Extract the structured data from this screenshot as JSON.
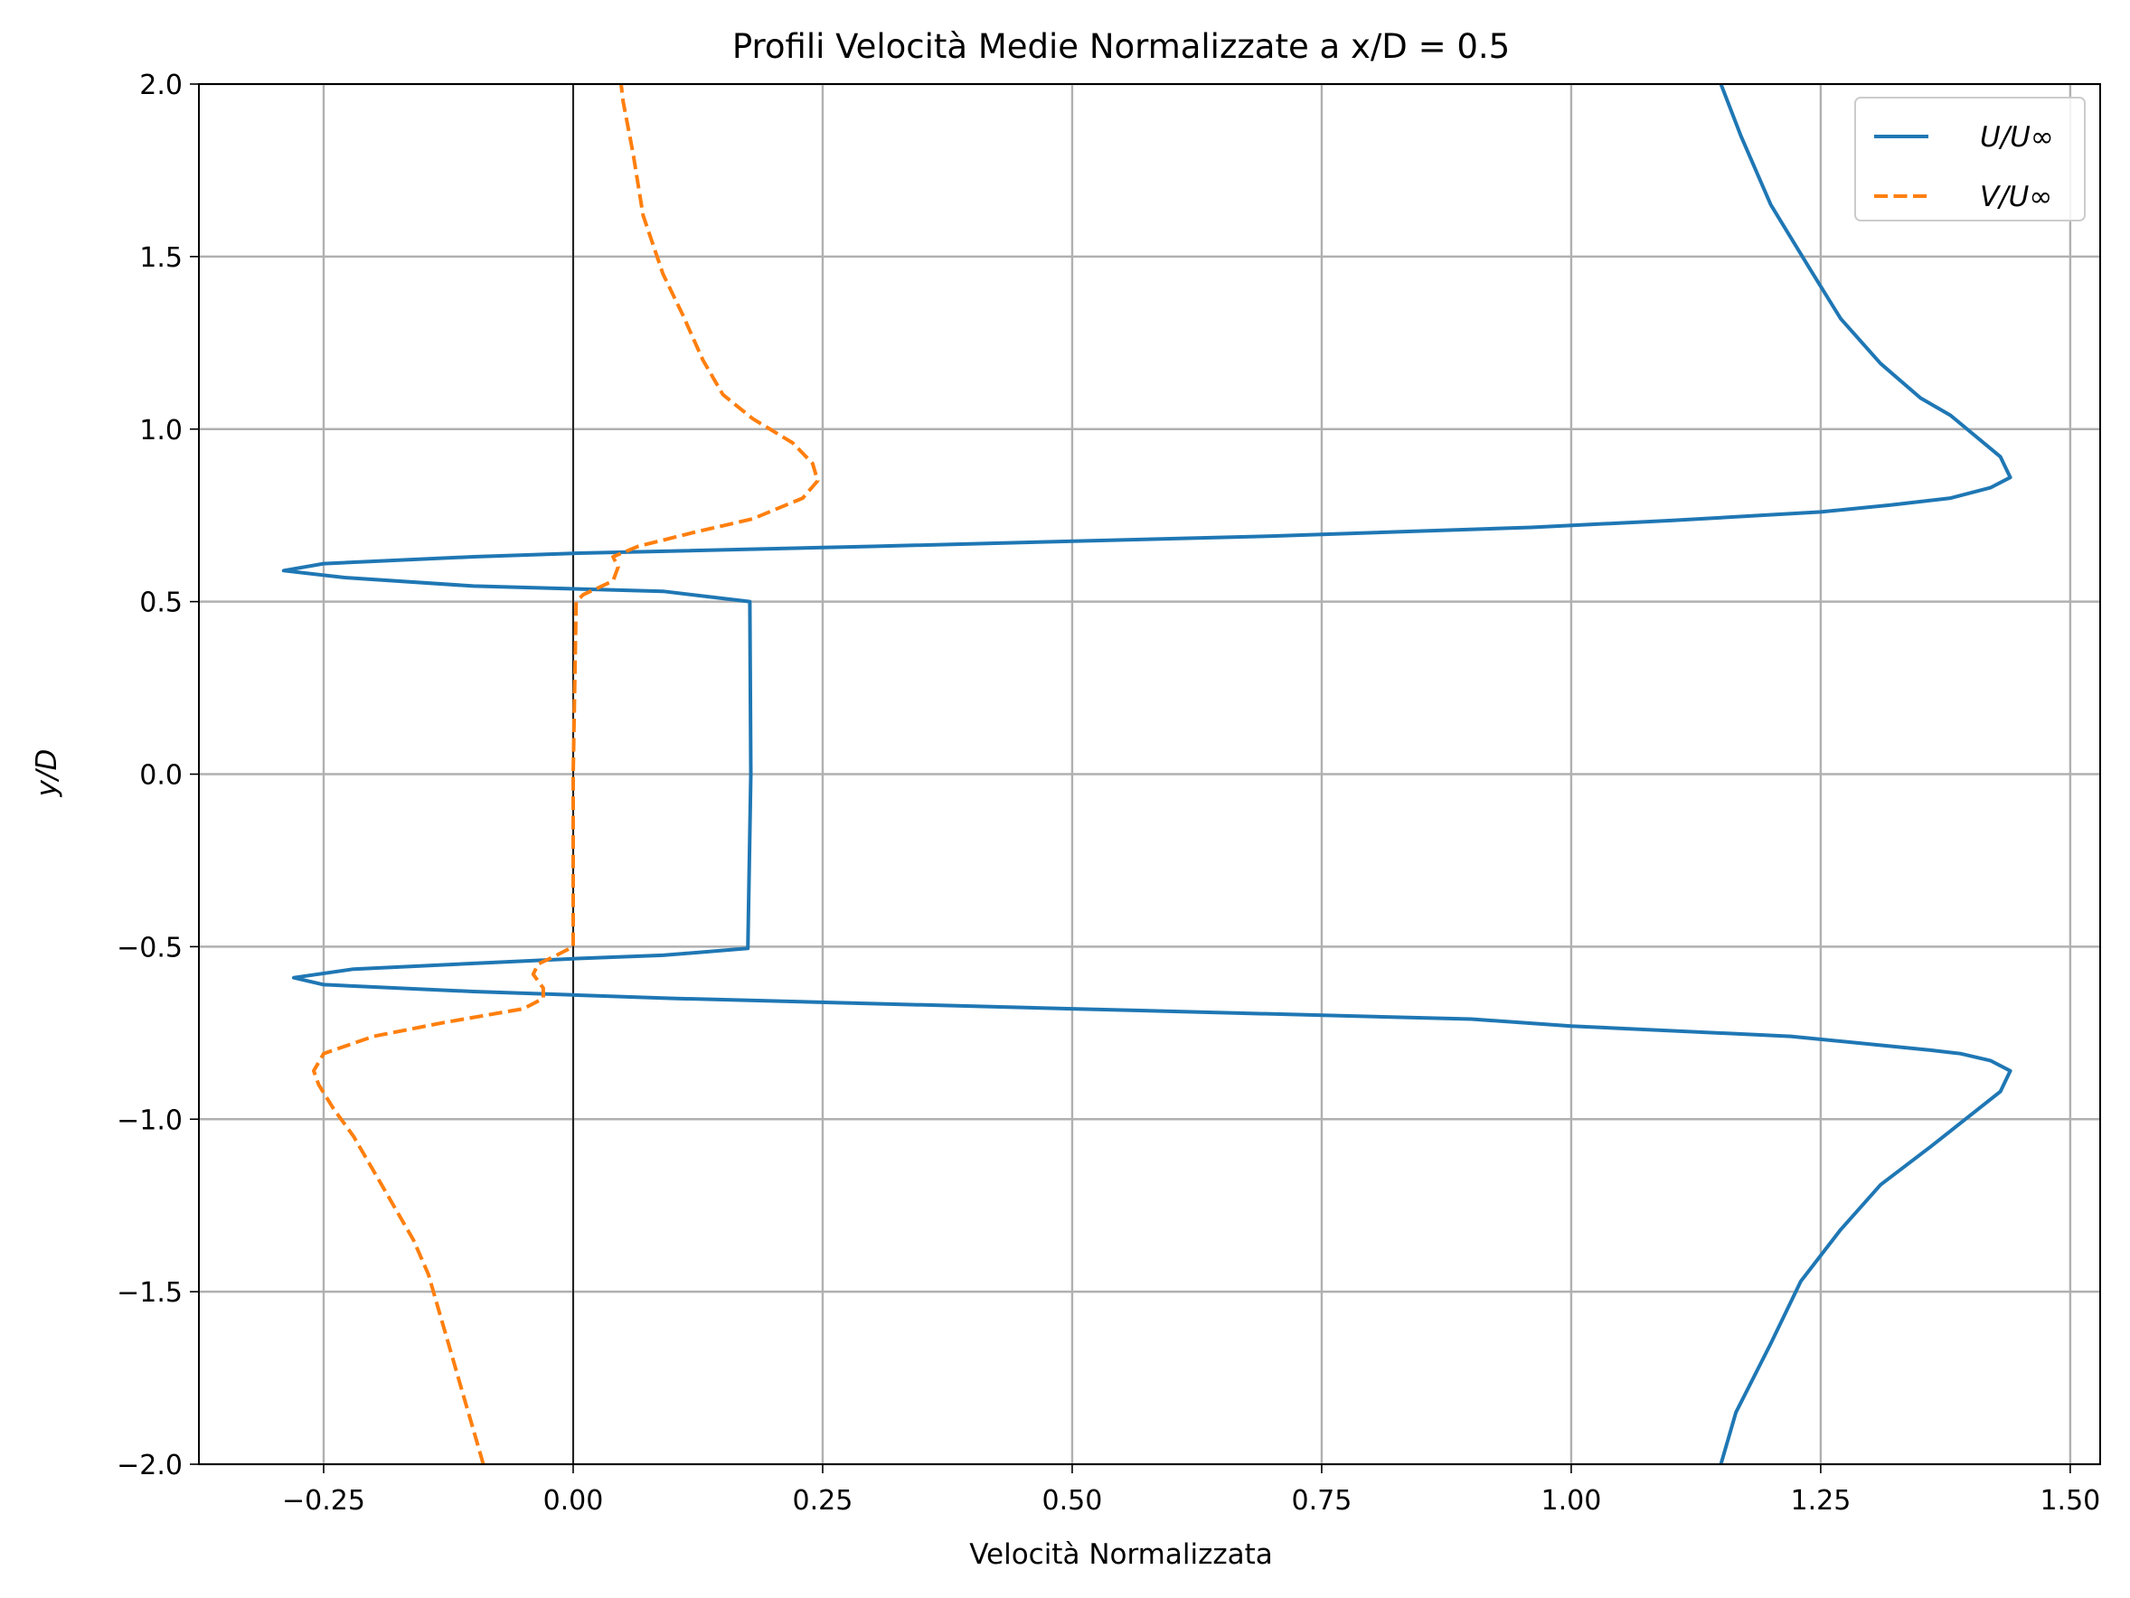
{
  "chart_data": {
    "type": "line",
    "title": "Profili Velocità Medie Normalizzate a x/D = 0.5",
    "xlabel": "Velocità Normalizzata",
    "ylabel": "y/D",
    "xlim": [
      -0.375,
      1.53
    ],
    "ylim": [
      -2.0,
      2.0
    ],
    "xticks": [
      -0.25,
      0.0,
      0.25,
      0.5,
      0.75,
      1.0,
      1.25,
      1.5
    ],
    "xtick_labels": [
      "−0.25",
      "0.00",
      "0.25",
      "0.50",
      "0.75",
      "1.00",
      "1.25",
      "1.50"
    ],
    "yticks": [
      -2.0,
      -1.5,
      -1.0,
      -0.5,
      0.0,
      0.5,
      1.0,
      1.5,
      2.0
    ],
    "ytick_labels": [
      "−2.0",
      "−1.5",
      "−1.0",
      "−0.5",
      "0.0",
      "0.5",
      "1.0",
      "1.5",
      "2.0"
    ],
    "grid": true,
    "reference_line_x": 0.0,
    "legend_position": "top-right",
    "series": [
      {
        "name": "U/U∞",
        "color": "#1f77b4",
        "style": "solid",
        "points": [
          [
            1.15,
            -2.0
          ],
          [
            1.165,
            -1.85
          ],
          [
            1.2,
            -1.65
          ],
          [
            1.23,
            -1.47
          ],
          [
            1.27,
            -1.32
          ],
          [
            1.31,
            -1.19
          ],
          [
            1.36,
            -1.08
          ],
          [
            1.43,
            -0.92
          ],
          [
            1.44,
            -0.86
          ],
          [
            1.42,
            -0.83
          ],
          [
            1.39,
            -0.81
          ],
          [
            1.36,
            -0.8
          ],
          [
            1.22,
            -0.76
          ],
          [
            1.0,
            -0.73
          ],
          [
            0.9,
            -0.71
          ],
          [
            0.5,
            -0.68
          ],
          [
            0.1,
            -0.65
          ],
          [
            0.0,
            -0.64
          ],
          [
            -0.1,
            -0.63
          ],
          [
            -0.25,
            -0.61
          ],
          [
            -0.28,
            -0.59
          ],
          [
            -0.22,
            -0.565
          ],
          [
            0.0,
            -0.535
          ],
          [
            0.09,
            -0.525
          ],
          [
            0.175,
            -0.505
          ],
          [
            0.178,
            0.0
          ],
          [
            0.177,
            0.5
          ],
          [
            0.09,
            0.53
          ],
          [
            -0.1,
            0.545
          ],
          [
            -0.23,
            0.57
          ],
          [
            -0.29,
            0.59
          ],
          [
            -0.25,
            0.61
          ],
          [
            -0.1,
            0.63
          ],
          [
            0.0,
            0.64
          ],
          [
            0.3,
            0.66
          ],
          [
            0.7,
            0.69
          ],
          [
            0.96,
            0.715
          ],
          [
            1.1,
            0.735
          ],
          [
            1.25,
            0.76
          ],
          [
            1.32,
            0.78
          ],
          [
            1.38,
            0.8
          ],
          [
            1.42,
            0.83
          ],
          [
            1.44,
            0.86
          ],
          [
            1.43,
            0.92
          ],
          [
            1.38,
            1.04
          ],
          [
            1.35,
            1.09
          ],
          [
            1.31,
            1.19
          ],
          [
            1.27,
            1.32
          ],
          [
            1.24,
            1.46
          ],
          [
            1.2,
            1.65
          ],
          [
            1.17,
            1.85
          ],
          [
            1.15,
            2.0
          ]
        ]
      },
      {
        "name": "V/U∞",
        "color": "#ff7f0e",
        "style": "dashed",
        "points": [
          [
            -0.09,
            -2.0
          ],
          [
            -0.1,
            -1.9
          ],
          [
            -0.11,
            -1.8
          ],
          [
            -0.125,
            -1.65
          ],
          [
            -0.135,
            -1.55
          ],
          [
            -0.145,
            -1.45
          ],
          [
            -0.16,
            -1.35
          ],
          [
            -0.18,
            -1.25
          ],
          [
            -0.2,
            -1.15
          ],
          [
            -0.22,
            -1.05
          ],
          [
            -0.24,
            -0.97
          ],
          [
            -0.255,
            -0.9
          ],
          [
            -0.26,
            -0.86
          ],
          [
            -0.25,
            -0.81
          ],
          [
            -0.2,
            -0.76
          ],
          [
            -0.13,
            -0.72
          ],
          [
            -0.05,
            -0.68
          ],
          [
            -0.03,
            -0.65
          ],
          [
            -0.03,
            -0.62
          ],
          [
            -0.04,
            -0.58
          ],
          [
            -0.035,
            -0.55
          ],
          [
            -0.02,
            -0.53
          ],
          [
            0.0,
            -0.5
          ],
          [
            0.0,
            0.0
          ],
          [
            0.003,
            0.5
          ],
          [
            0.01,
            0.52
          ],
          [
            0.04,
            0.56
          ],
          [
            0.045,
            0.6
          ],
          [
            0.04,
            0.63
          ],
          [
            0.065,
            0.66
          ],
          [
            0.12,
            0.7
          ],
          [
            0.18,
            0.74
          ],
          [
            0.23,
            0.8
          ],
          [
            0.245,
            0.85
          ],
          [
            0.24,
            0.9
          ],
          [
            0.22,
            0.96
          ],
          [
            0.18,
            1.03
          ],
          [
            0.15,
            1.1
          ],
          [
            0.13,
            1.2
          ],
          [
            0.11,
            1.33
          ],
          [
            0.09,
            1.45
          ],
          [
            0.07,
            1.62
          ],
          [
            0.06,
            1.8
          ],
          [
            0.05,
            1.95
          ],
          [
            0.048,
            2.0
          ]
        ]
      }
    ]
  }
}
